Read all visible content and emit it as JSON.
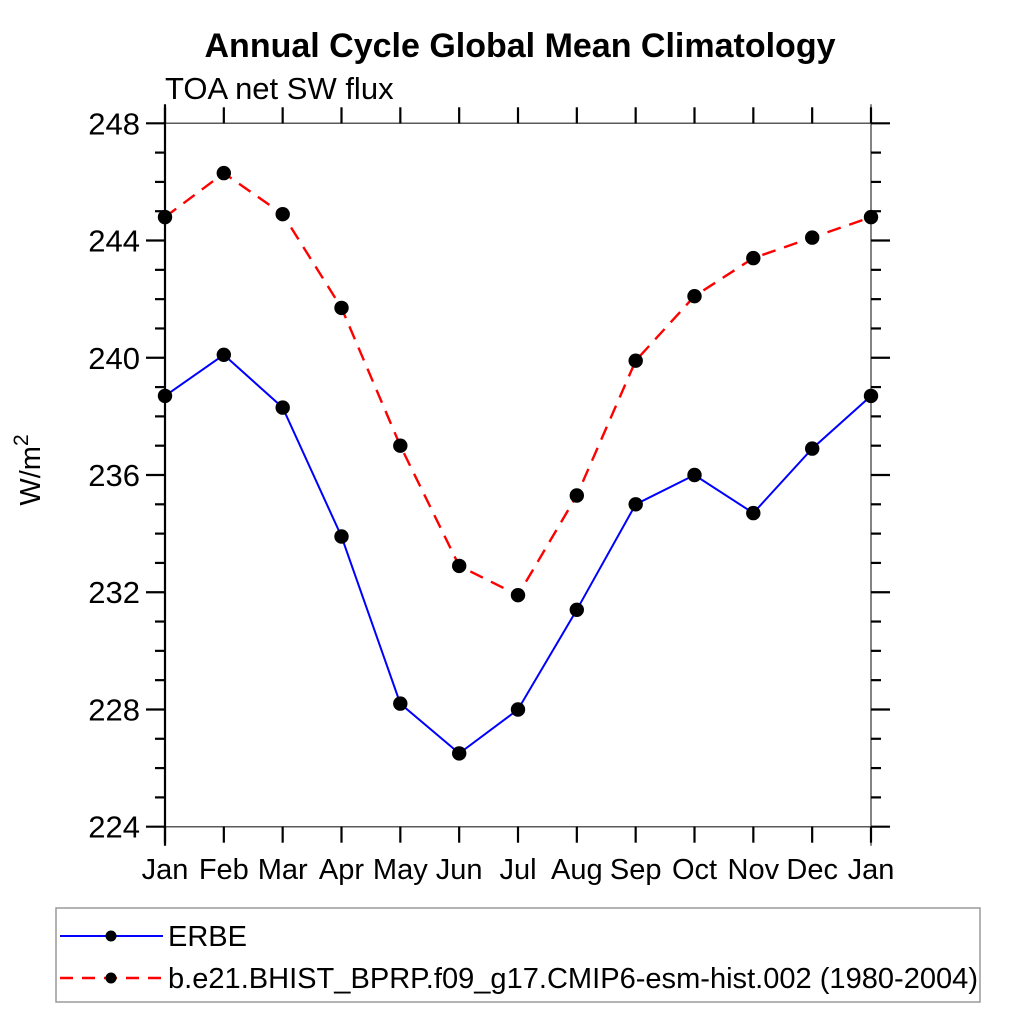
{
  "chart_data": {
    "type": "line",
    "title": "Annual Cycle Global Mean Climatology",
    "subtitle": "TOA net SW flux",
    "ylabel_base": "W/m",
    "ylabel_sup": "2",
    "categories": [
      "Jan",
      "Feb",
      "Mar",
      "Apr",
      "May",
      "Jun",
      "Jul",
      "Aug",
      "Sep",
      "Oct",
      "Nov",
      "Dec",
      "Jan"
    ],
    "yaxis": {
      "min": 224,
      "max": 248,
      "major_step": 4,
      "minor_step": 1,
      "major_tick_labels": [
        "224",
        "228",
        "232",
        "236",
        "240",
        "244",
        "248"
      ]
    },
    "grid": false,
    "legend_position": "bottom",
    "marker_color": "#000000",
    "series": [
      {
        "name": "ERBE",
        "color": "#0000ff",
        "style": "solid",
        "marker": "filled-circle",
        "values": [
          238.7,
          240.1,
          238.3,
          233.9,
          228.2,
          226.5,
          228.0,
          231.4,
          235.0,
          236.0,
          234.7,
          236.9,
          238.7
        ]
      },
      {
        "name": "b.e21.BHIST_BPRP.f09_g17.CMIP6-esm-hist.002 (1980-2004)",
        "color": "#ff0000",
        "style": "dashed",
        "marker": "filled-circle",
        "values": [
          244.8,
          246.3,
          244.9,
          241.7,
          237.0,
          232.9,
          231.9,
          235.3,
          239.9,
          242.1,
          243.4,
          244.1,
          244.8
        ]
      }
    ]
  }
}
